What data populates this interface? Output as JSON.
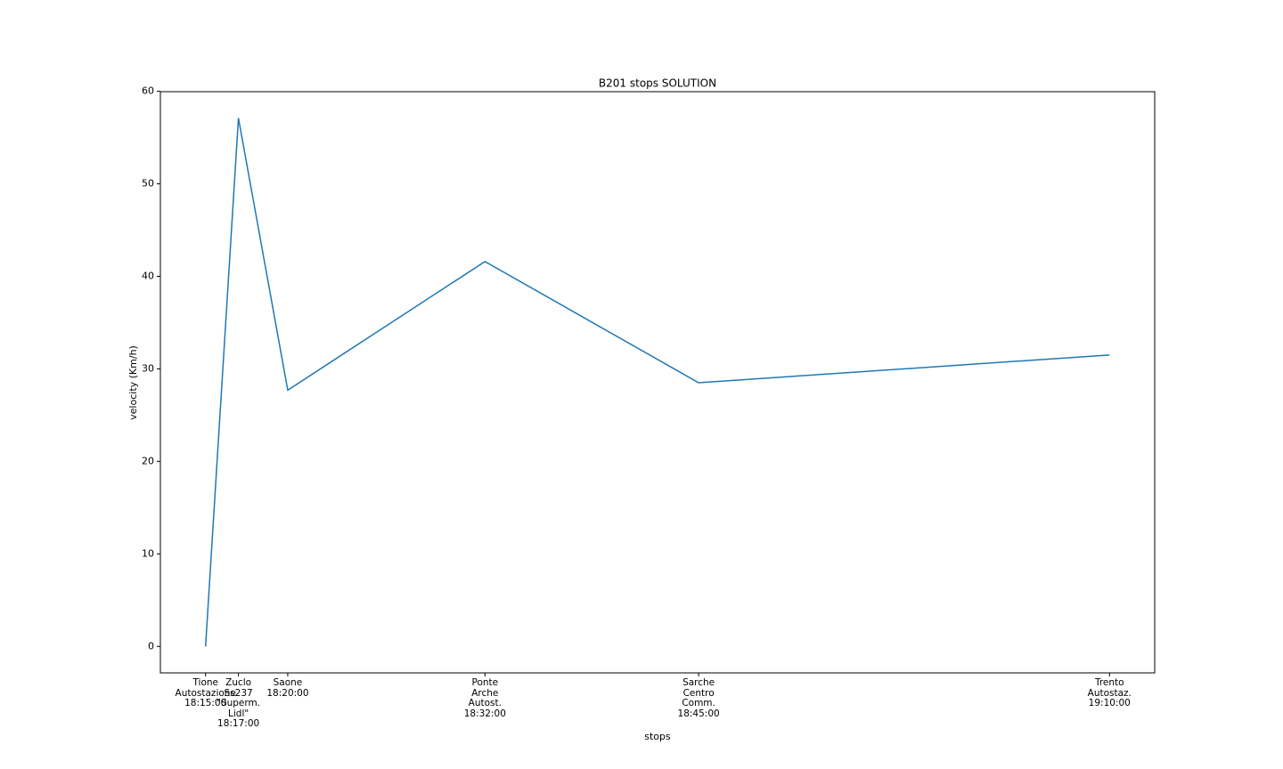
{
  "chart_data": {
    "type": "line",
    "title": "B201 stops SOLUTION",
    "x_label": "stops",
    "y_label": "velocity (Km/h)",
    "x": [
      "18:15:00",
      "18:17:00",
      "18:20:00",
      "18:32:00",
      "18:45:00",
      "19:10:00"
    ],
    "stops": [
      "Tione\nAutostazione",
      "Zuclo\nSs237\n\"Superm.\nLidl\"",
      "Saone",
      "Ponte\nArche\nAutost.",
      "Sarche\nCentro\nComm.",
      "Trento\nAutostaz."
    ],
    "series": [
      {
        "name": "velocity",
        "color": "#1f77b4",
        "values": [
          0,
          57.1,
          27.7,
          41.6,
          28.5,
          31.5
        ]
      }
    ],
    "xlim": [
      "18:12:15",
      "19:12:45"
    ],
    "ylim": [
      -2.86,
      59.96
    ],
    "yticks": [
      0,
      10,
      20,
      30,
      40,
      50,
      60
    ]
  }
}
